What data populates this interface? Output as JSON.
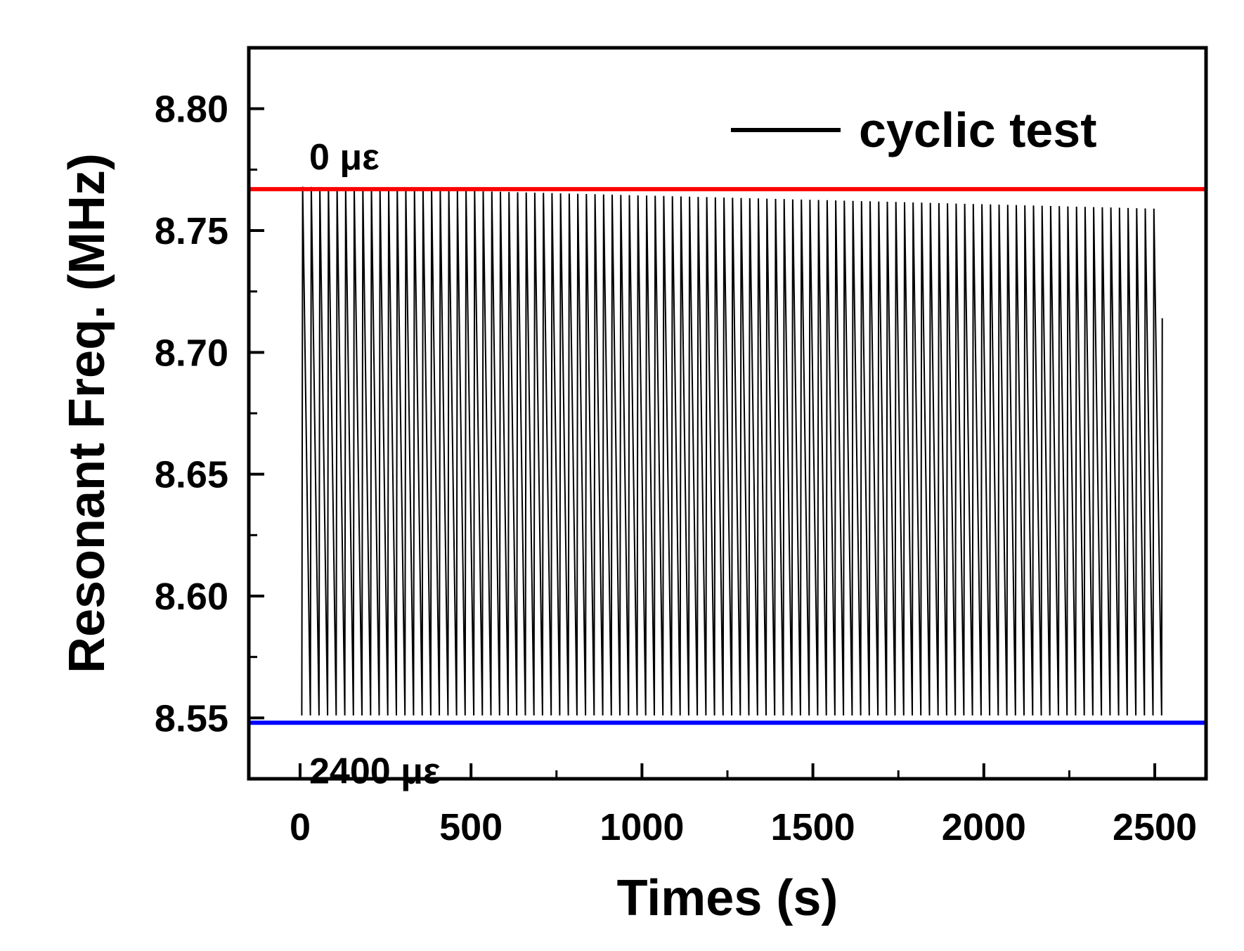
{
  "chart_data": {
    "type": "line",
    "title": "",
    "xlabel": "Times (s)",
    "ylabel": "Resonant Freq. (MHz)",
    "xlim": [
      -150,
      2650
    ],
    "ylim": [
      8.525,
      8.825
    ],
    "xticks": [
      0,
      500,
      1000,
      1500,
      2000,
      2500
    ],
    "xtick_labels": [
      "0",
      "500",
      "1000",
      "1500",
      "2000",
      "2500"
    ],
    "xminor_step": 250,
    "yticks": [
      8.55,
      8.6,
      8.65,
      8.7,
      8.75,
      8.8
    ],
    "ytick_labels": [
      "8.55",
      "8.60",
      "8.65",
      "8.70",
      "8.75",
      "8.80"
    ],
    "yminor_step": 0.025,
    "grid": false,
    "legend": {
      "position": "top-right",
      "entries": [
        "cyclic test"
      ]
    },
    "series": [
      {
        "name": "cyclic test",
        "color": "#000000",
        "cycle": {
          "start_time": 5,
          "end_time": 2520,
          "cycles": 100,
          "high_level_start": 8.768,
          "high_level_end": 8.759,
          "low_level": 8.551,
          "end_value": 8.714
        }
      }
    ],
    "reference_lines": [
      {
        "y": 8.767,
        "color": "#ff0000",
        "label": "0 με"
      },
      {
        "y": 8.548,
        "color": "#0000ff",
        "label": "2400 με"
      }
    ]
  }
}
